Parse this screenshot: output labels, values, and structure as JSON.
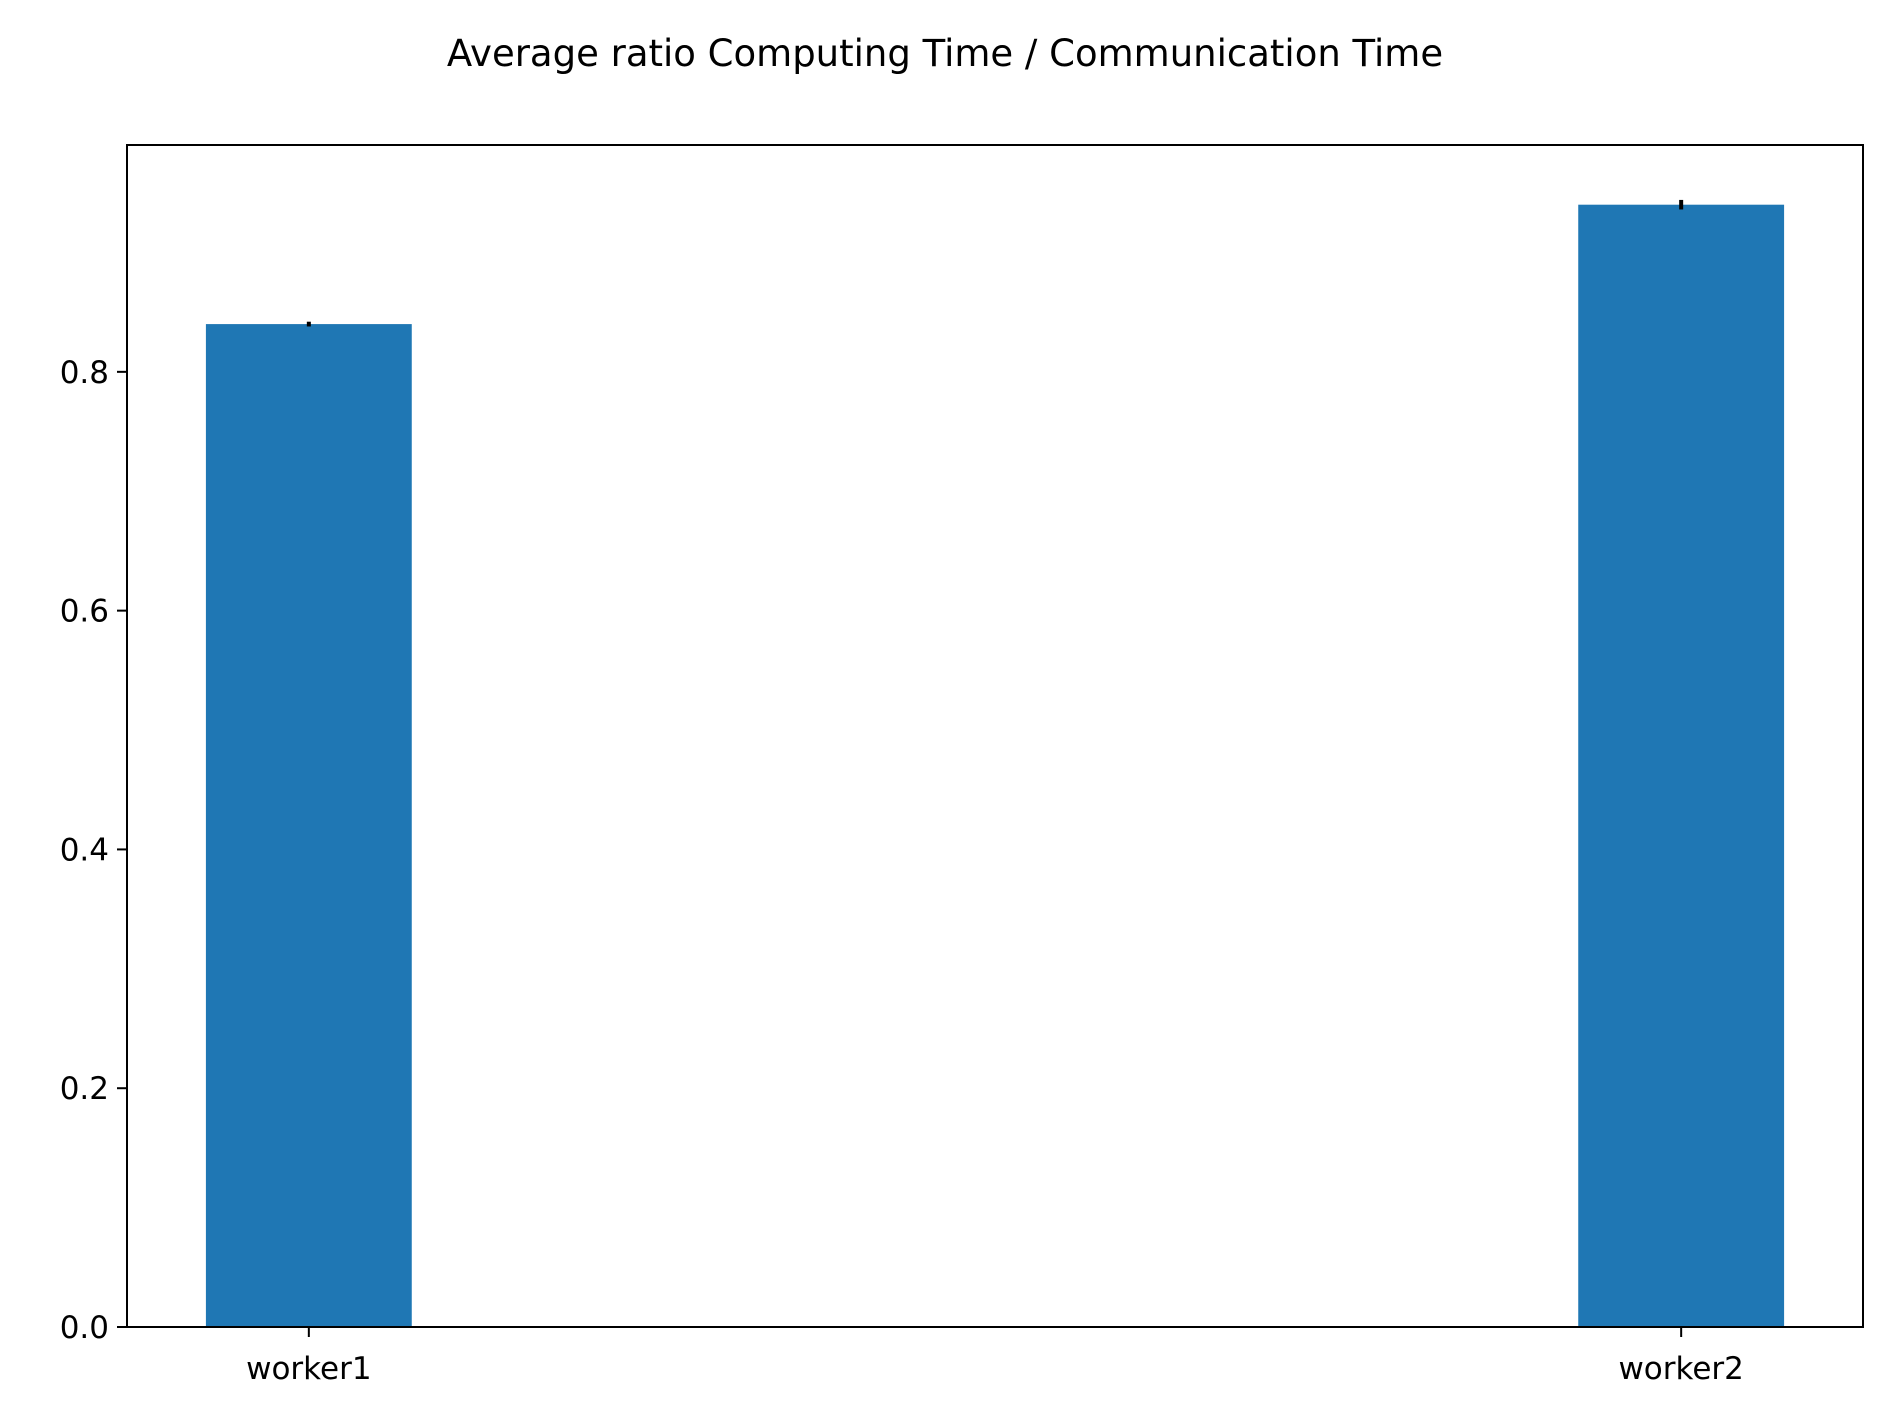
{
  "chart_data": {
    "type": "bar",
    "title": "Average ratio Computing Time / Communication Time",
    "xlabel": "",
    "ylabel": "",
    "categories": [
      "worker1",
      "worker2"
    ],
    "values": [
      0.84,
      0.94
    ],
    "errors": [
      0.002,
      0.004
    ],
    "ylim": [
      0,
      0.99
    ],
    "yticks": [
      "0.0",
      "0.2",
      "0.4",
      "0.6",
      "0.8"
    ],
    "grid": false,
    "legend": "none",
    "colors": {
      "bar": "#1f77b4",
      "error_bar": "#000000",
      "axes": "#000000"
    }
  }
}
